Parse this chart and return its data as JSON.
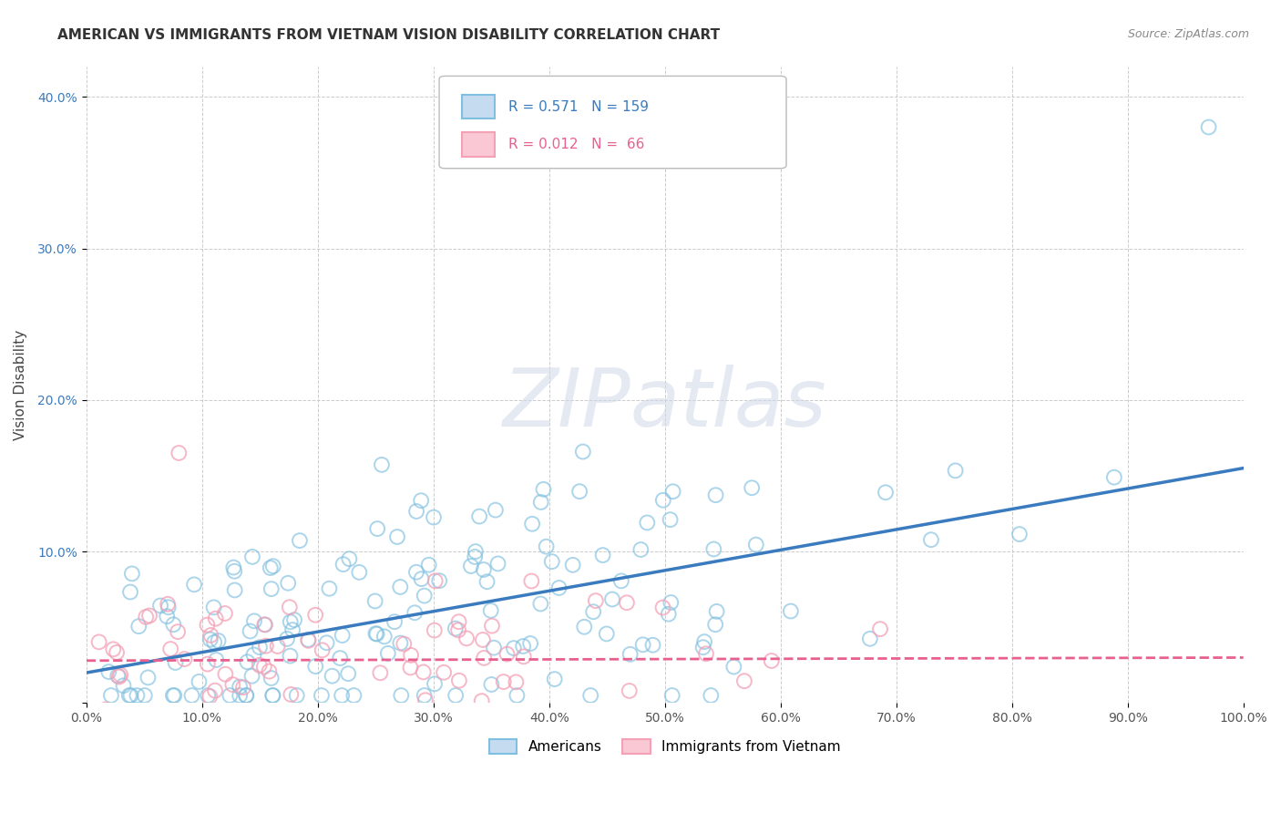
{
  "title": "AMERICAN VS IMMIGRANTS FROM VIETNAM VISION DISABILITY CORRELATION CHART",
  "source": "Source: ZipAtlas.com",
  "ylabel": "Vision Disability",
  "watermark": "ZIPatlas",
  "xlim": [
    0,
    1.0
  ],
  "ylim": [
    0.0,
    0.42
  ],
  "xticks": [
    0.0,
    0.1,
    0.2,
    0.3,
    0.4,
    0.5,
    0.6,
    0.7,
    0.8,
    0.9,
    1.0
  ],
  "yticks": [
    0.0,
    0.1,
    0.2,
    0.3,
    0.4
  ],
  "ytick_labels": [
    "",
    "10.0%",
    "20.0%",
    "30.0%",
    "40.0%"
  ],
  "xtick_labels": [
    "0.0%",
    "10.0%",
    "20.0%",
    "30.0%",
    "40.0%",
    "50.0%",
    "60.0%",
    "70.0%",
    "80.0%",
    "90.0%",
    "100.0%"
  ],
  "blue_R": 0.571,
  "blue_N": 159,
  "pink_R": 0.012,
  "pink_N": 66,
  "blue_color": "#7fbfdf",
  "pink_color": "#f4a0b5",
  "blue_line_color": "#3a7bbf",
  "pink_line_color": "#e86090",
  "legend_label_blue": "Americans",
  "legend_label_pink": "Immigrants from Vietnam",
  "blue_line_x0": 0.0,
  "blue_line_y0": 0.02,
  "blue_line_x1": 1.0,
  "blue_line_y1": 0.155,
  "pink_line_x0": 0.0,
  "pink_line_y0": 0.028,
  "pink_line_x1": 1.0,
  "pink_line_y1": 0.03,
  "grid_color": "#cccccc",
  "background_color": "#ffffff"
}
